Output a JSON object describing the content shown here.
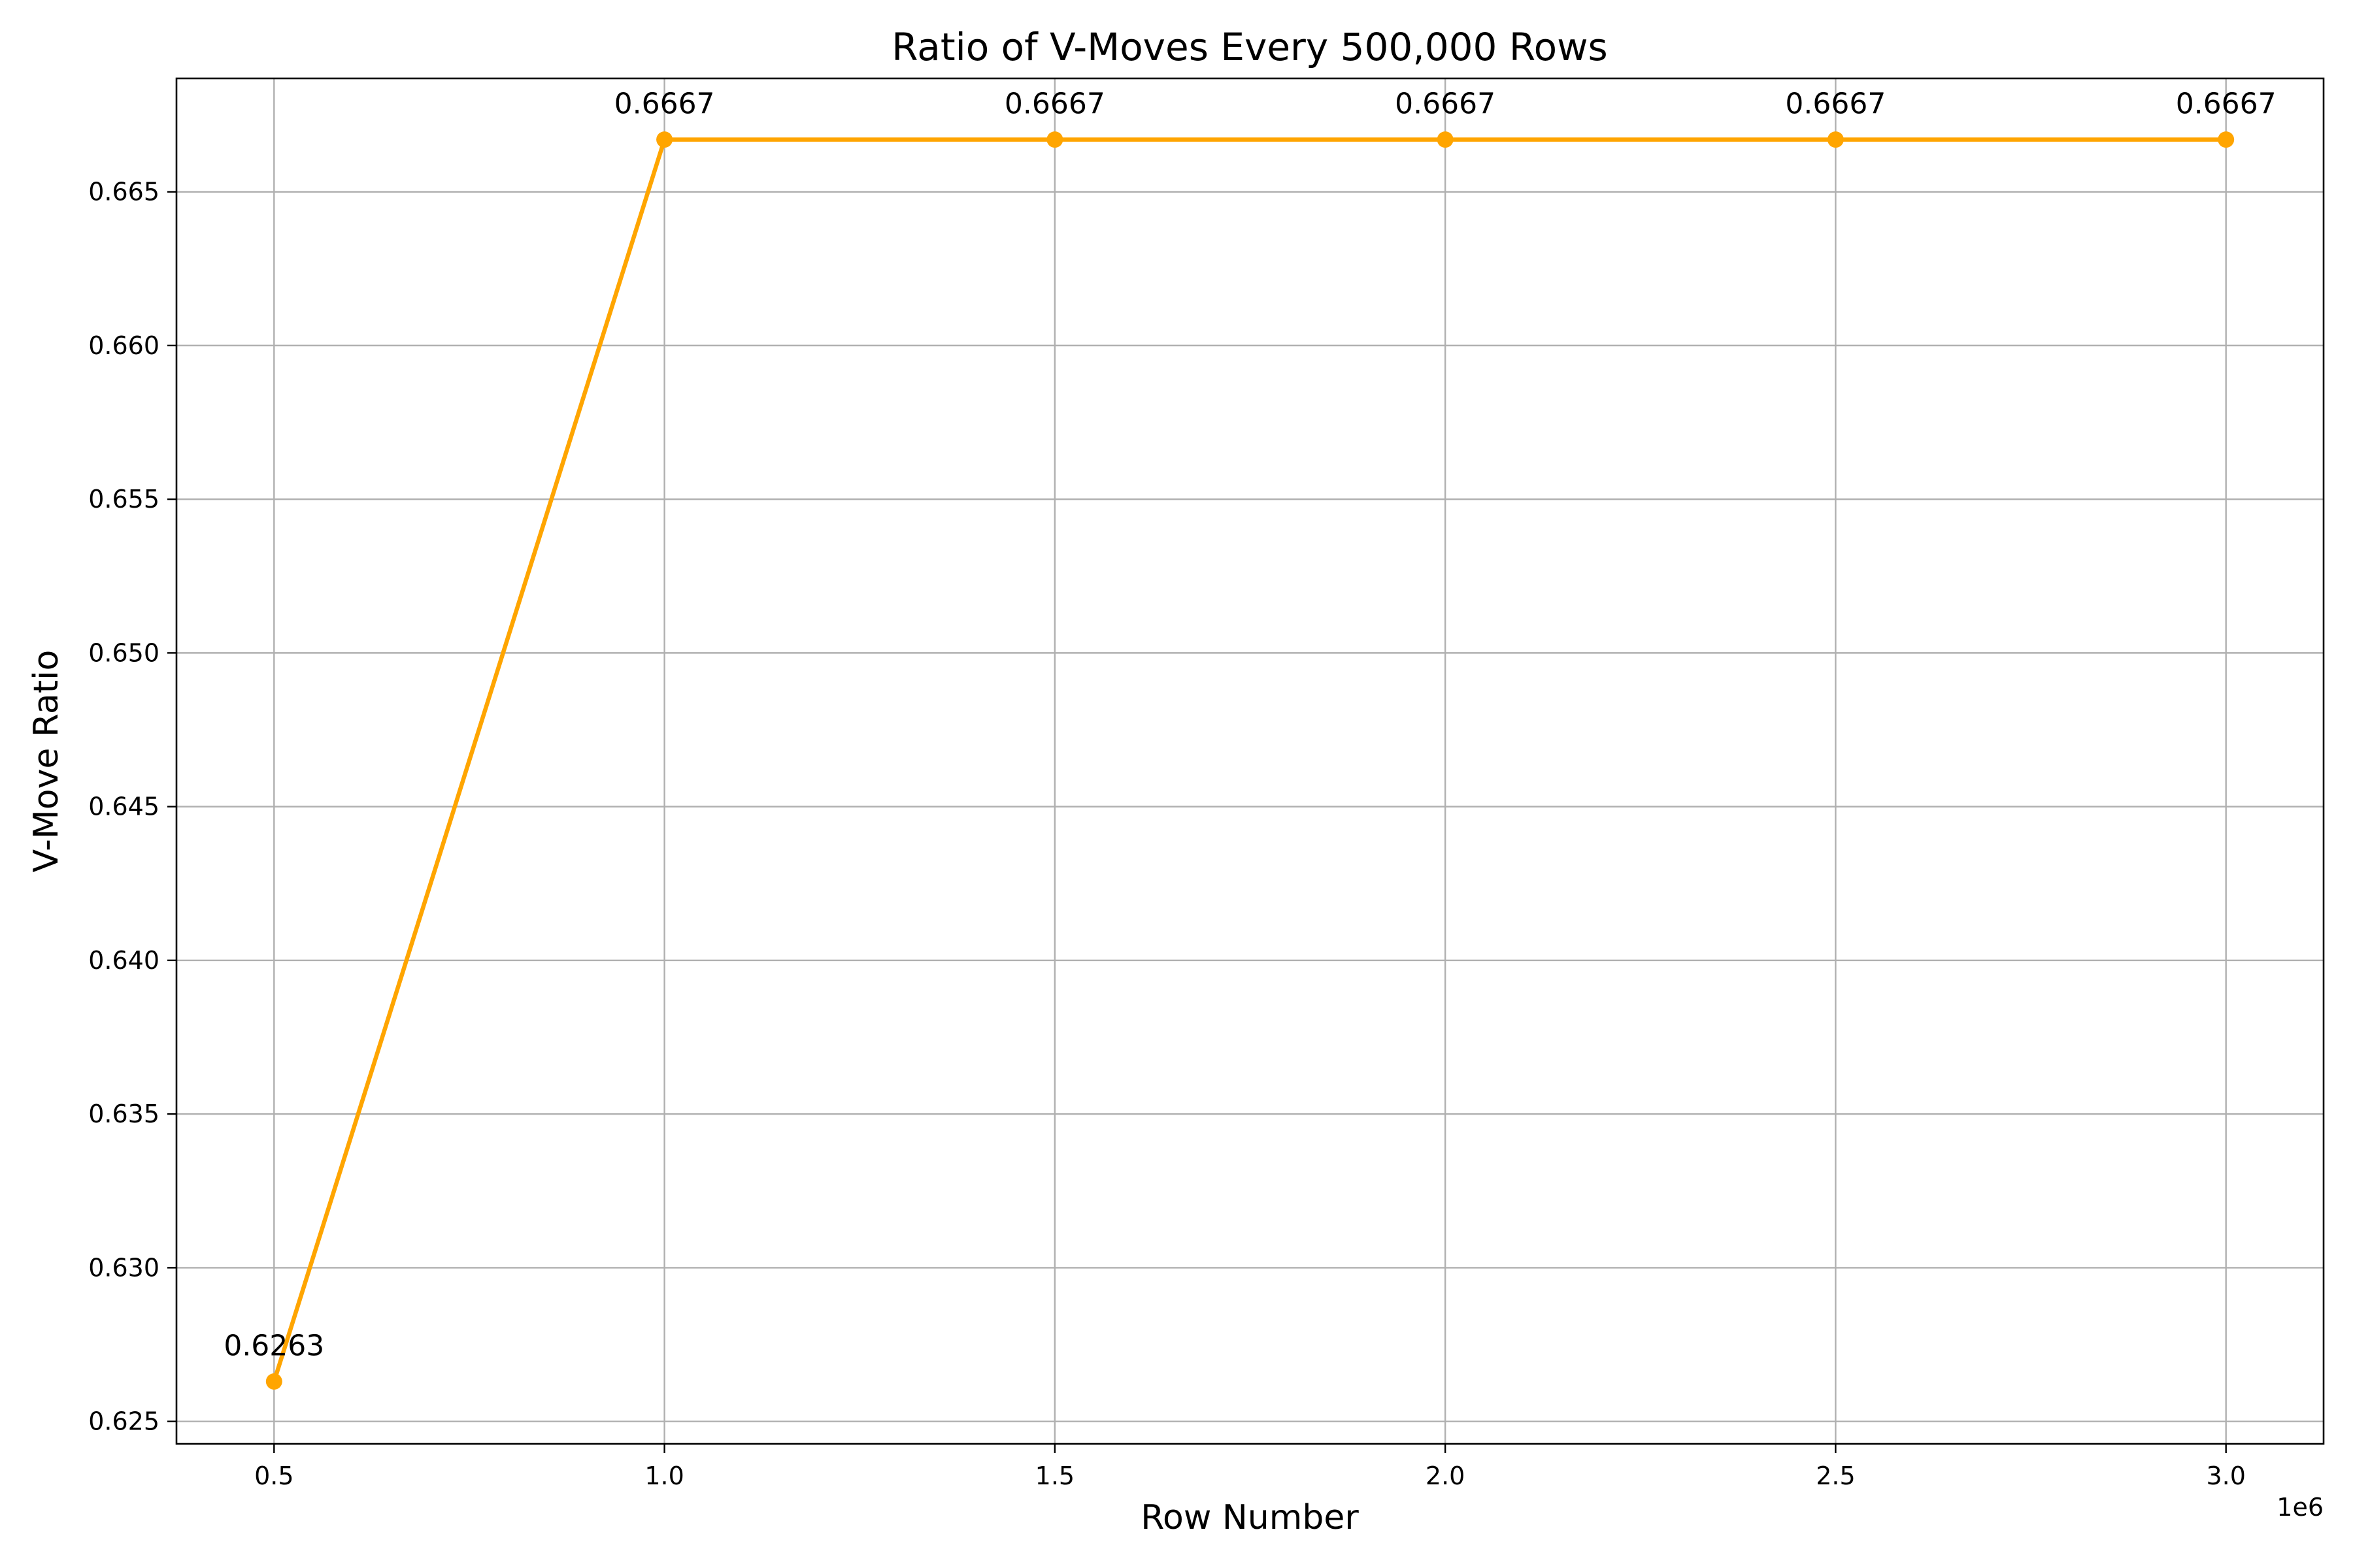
{
  "chart_data": {
    "type": "line",
    "title": "Ratio of V-Moves Every 500,000 Rows",
    "xlabel": "Row Number",
    "ylabel": "V-Move Ratio",
    "x_offset_label": "1e6",
    "x": [
      500000,
      1000000,
      1500000,
      2000000,
      2500000,
      3000000
    ],
    "xlim": [
      375000,
      3125000
    ],
    "ylim": [
      0.62427,
      0.66869
    ],
    "x_ticks": [
      500000,
      1000000,
      1500000,
      2000000,
      2500000,
      3000000
    ],
    "x_tick_labels": [
      "0.5",
      "1.0",
      "1.5",
      "2.0",
      "2.5",
      "3.0"
    ],
    "y_ticks": [
      0.625,
      0.63,
      0.635,
      0.64,
      0.645,
      0.65,
      0.655,
      0.66,
      0.665
    ],
    "y_tick_labels": [
      "0.625",
      "0.630",
      "0.635",
      "0.640",
      "0.645",
      "0.650",
      "0.655",
      "0.660",
      "0.665"
    ],
    "grid": true,
    "series": [
      {
        "values": [
          0.6263,
          0.6667,
          0.6667,
          0.6667,
          0.6667,
          0.6667
        ],
        "data_labels": [
          "0.6263",
          "0.6667",
          "0.6667",
          "0.6667",
          "0.6667",
          "0.6667"
        ],
        "color": "#ffa500",
        "marker": "circle"
      }
    ]
  }
}
